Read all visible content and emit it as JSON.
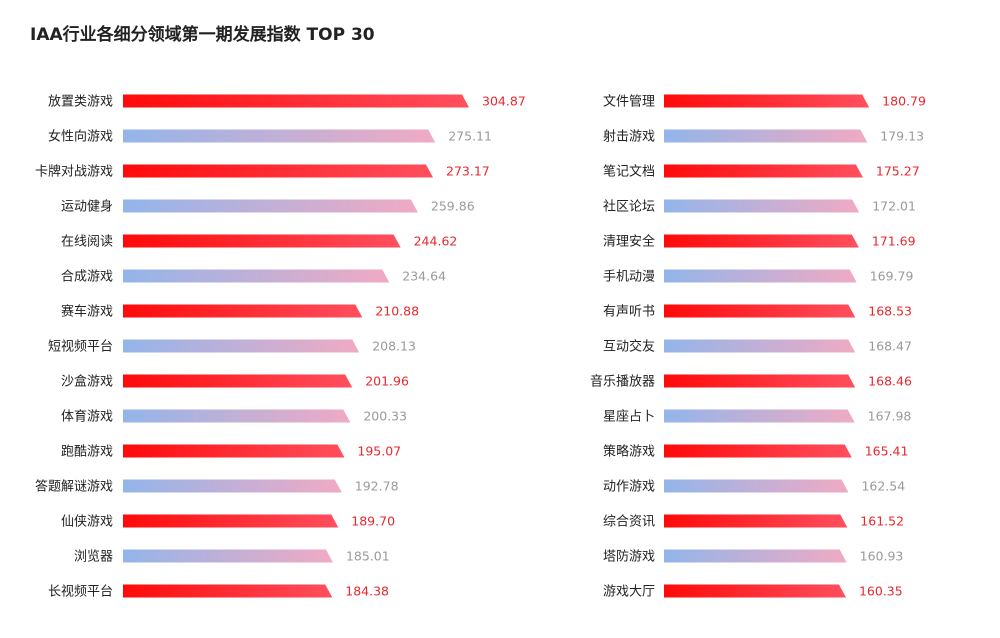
{
  "title": "IAA行业各细分领域第一期发展指数 TOP 30",
  "colors": {
    "red_start": "#ff0a0a",
    "red_end": "#ff4f5e",
    "blue_start": "#93b5ea",
    "pink_end": "#f0aac3",
    "red_label": "#e8282e",
    "gray_label": "#9a9a9a"
  },
  "chart_data": {
    "type": "bar",
    "orientation": "horizontal",
    "xlim": [
      0,
      320
    ],
    "panels": [
      {
        "categories": [
          "放置类游戏",
          "女性向游戏",
          "卡牌对战游戏",
          "运动健身",
          "在线阅读",
          "合成游戏",
          "赛车游戏",
          "短视频平台",
          "沙盒游戏",
          "体育游戏",
          "跑酷游戏",
          "答题解谜游戏",
          "仙侠游戏",
          "浏览器",
          "长视频平台"
        ],
        "values": [
          304.87,
          275.11,
          273.17,
          259.86,
          244.62,
          234.64,
          210.88,
          208.13,
          201.96,
          200.33,
          195.07,
          192.78,
          189.7,
          185.01,
          184.38
        ],
        "labels": [
          "304.87",
          "275.11",
          "273.17",
          "259.86",
          "244.62",
          "234.64",
          "210.88",
          "208.13",
          "201.96",
          "200.33",
          "195.07",
          "192.78",
          "189.70",
          "185.01",
          "184.38"
        ]
      },
      {
        "categories": [
          "文件管理",
          "射击游戏",
          "笔记文档",
          "社区论坛",
          "清理安全",
          "手机动漫",
          "有声听书",
          "互动交友",
          "音乐播放器",
          "星座占卜",
          "策略游戏",
          "动作游戏",
          "综合资讯",
          "塔防游戏",
          "游戏大厅"
        ],
        "values": [
          180.79,
          179.13,
          175.27,
          172.01,
          171.69,
          169.79,
          168.53,
          168.47,
          168.46,
          167.98,
          165.41,
          162.54,
          161.52,
          160.93,
          160.35
        ],
        "labels": [
          "180.79",
          "179.13",
          "175.27",
          "172.01",
          "171.69",
          "169.79",
          "168.53",
          "168.47",
          "168.46",
          "167.98",
          "165.41",
          "162.54",
          "161.52",
          "160.93",
          "160.35"
        ]
      }
    ]
  }
}
